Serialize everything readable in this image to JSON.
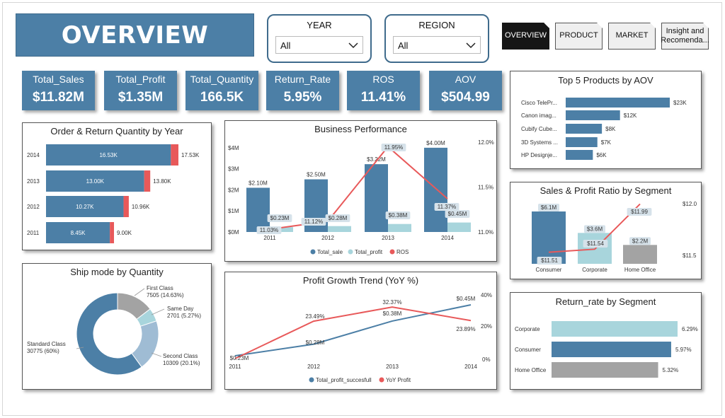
{
  "header": {
    "title": "OVERVIEW"
  },
  "slicers": [
    {
      "label": "YEAR",
      "value": "All"
    },
    {
      "label": "REGION",
      "value": "All"
    }
  ],
  "nav": [
    {
      "label": "OVERVIEW",
      "active": true
    },
    {
      "label": "PRODUCT",
      "active": false
    },
    {
      "label": "MARKET",
      "active": false
    },
    {
      "label": "Insight and Recomenda...",
      "active": false
    }
  ],
  "kpis": [
    {
      "label": "Total_Sales",
      "value": "$11.82M"
    },
    {
      "label": "Total_Profit",
      "value": "$1.35M"
    },
    {
      "label": "Total_Quantity",
      "value": "166.5K"
    },
    {
      "label": "Return_Rate",
      "value": "5.95%"
    },
    {
      "label": "ROS",
      "value": "11.41%"
    },
    {
      "label": "AOV",
      "value": "$504.99"
    }
  ],
  "colors": {
    "primary": "#4c7fa6",
    "light": "#a8d5dc",
    "red": "#e8595a",
    "gray": "#a3a3a3",
    "dark": "#161616"
  },
  "chart_data": [
    {
      "id": "order_return",
      "type": "bar",
      "title": "Order & Return Quantity by Year",
      "categories": [
        "2014",
        "2013",
        "2012",
        "2011"
      ],
      "series": [
        {
          "values": [
            16.53,
            13.0,
            10.27,
            8.45
          ],
          "labels": [
            "16.53K",
            "13.00K",
            "10.27K",
            "8.45K"
          ]
        },
        {
          "values": [
            1.0,
            0.8,
            0.69,
            0.55
          ]
        }
      ],
      "total_labels": [
        "17.53K",
        "13.80K",
        "10.96K",
        "9.00K"
      ]
    },
    {
      "id": "business",
      "type": "bar",
      "title": "Business Performance",
      "categories": [
        "2011",
        "2012",
        "2013",
        "2014"
      ],
      "series": [
        {
          "name": "Total_sale",
          "values": [
            2.1,
            2.5,
            3.22,
            4.0
          ],
          "labels": [
            "$2.10M",
            "$2.50M",
            "$3.22M",
            "$4.00M"
          ]
        },
        {
          "name": "Total_profit",
          "values": [
            0.23,
            0.28,
            0.38,
            0.45
          ],
          "labels": [
            "$0.23M",
            "$0.28M",
            "$0.38M",
            "$0.45M"
          ]
        },
        {
          "name": "ROS",
          "values": [
            11.03,
            11.12,
            11.95,
            11.37
          ],
          "labels": [
            "11.03%",
            "11.12%",
            "11.95%",
            "11.37%"
          ]
        }
      ],
      "left_ticks": [
        "$0M",
        "$1M",
        "$2M",
        "$3M",
        "$4M"
      ],
      "right_ticks": [
        "11.0%",
        "11.5%",
        "12.0%"
      ],
      "ylim": [
        0,
        4.5
      ],
      "y2lim": [
        11.0,
        12.0
      ]
    },
    {
      "id": "top5",
      "type": "bar",
      "title": "Top 5 Products by AOV",
      "categories": [
        "Cisco TelePr...",
        "Canon imag...",
        "Cubify Cube...",
        "3D Systems ...",
        "HP Designje..."
      ],
      "values": [
        23,
        12,
        8,
        7,
        6
      ],
      "labels": [
        "$23K",
        "$12K",
        "$8K",
        "$7K",
        "$6K"
      ]
    },
    {
      "id": "segment_ratio",
      "type": "bar",
      "title": "Sales & Profit Ratio by Segment",
      "categories": [
        "Consumer",
        "Corporate",
        "Home Office"
      ],
      "values": [
        6.1,
        3.6,
        2.2
      ],
      "labels": [
        "$6.1M",
        "$3.6M",
        "$2.2M"
      ],
      "line_values": [
        11.51,
        11.54,
        11.99
      ],
      "line_labels": [
        "$11.51",
        "$11.54",
        "$11.99"
      ],
      "right_ticks": [
        "$11.5",
        "$12.0"
      ]
    },
    {
      "id": "shipmode",
      "type": "pie",
      "title": "Ship mode by Quantity",
      "slices": [
        {
          "name": "Standard Class",
          "value": 30775,
          "label": "30775 (60%)"
        },
        {
          "name": "First Class",
          "value": 7505,
          "label": "7505 (14.63%)"
        },
        {
          "name": "Same Day",
          "value": 2701,
          "label": "2701 (5.27%)"
        },
        {
          "name": "Second Class",
          "value": 10309,
          "label": "10309 (20.1%)"
        }
      ]
    },
    {
      "id": "profit_growth",
      "type": "line",
      "title": "Profit Growth Trend (YoY %)",
      "categories": [
        "2011",
        "2012",
        "2013",
        "2014"
      ],
      "series": [
        {
          "name": "Total_profit_succesfull",
          "values": [
            0.23,
            0.28,
            0.38,
            0.45
          ],
          "labels": [
            "$0.23M",
            "$0.28M",
            "$0.38M",
            "$0.45M"
          ]
        },
        {
          "name": "YoY Profit",
          "values": [
            0,
            23.49,
            32.37,
            23.89
          ],
          "labels": [
            "",
            "23.49%",
            "32.37%",
            "23.89%"
          ]
        }
      ],
      "right_ticks": [
        "0%",
        "20%",
        "40%"
      ]
    },
    {
      "id": "return_segment",
      "type": "bar",
      "title": "Return_rate by Segment",
      "categories": [
        "Corporate",
        "Consumer",
        "Home Office"
      ],
      "values": [
        6.29,
        5.97,
        5.32
      ],
      "labels": [
        "6.29%",
        "5.97%",
        "5.32%"
      ]
    }
  ]
}
